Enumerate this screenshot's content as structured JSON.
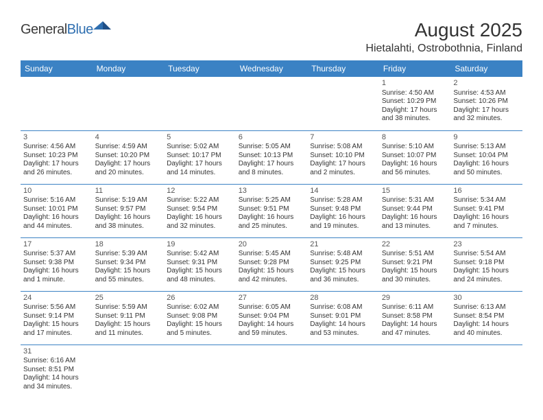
{
  "logo": {
    "part1": "General",
    "part2": "Blue"
  },
  "title": "August 2025",
  "location": "Hietalahti, Ostrobothnia, Finland",
  "colors": {
    "header_bg": "#3b82c4",
    "header_text": "#ffffff",
    "border": "#3b82c4",
    "text": "#333333",
    "logo_gray": "#3b3b3b",
    "logo_blue": "#2f6fb0",
    "background": "#ffffff"
  },
  "dayHeaders": [
    "Sunday",
    "Monday",
    "Tuesday",
    "Wednesday",
    "Thursday",
    "Friday",
    "Saturday"
  ],
  "weeks": [
    [
      null,
      null,
      null,
      null,
      null,
      {
        "n": "1",
        "sr": "4:50 AM",
        "ss": "10:29 PM",
        "dl": "17 hours and 38 minutes."
      },
      {
        "n": "2",
        "sr": "4:53 AM",
        "ss": "10:26 PM",
        "dl": "17 hours and 32 minutes."
      }
    ],
    [
      {
        "n": "3",
        "sr": "4:56 AM",
        "ss": "10:23 PM",
        "dl": "17 hours and 26 minutes."
      },
      {
        "n": "4",
        "sr": "4:59 AM",
        "ss": "10:20 PM",
        "dl": "17 hours and 20 minutes."
      },
      {
        "n": "5",
        "sr": "5:02 AM",
        "ss": "10:17 PM",
        "dl": "17 hours and 14 minutes."
      },
      {
        "n": "6",
        "sr": "5:05 AM",
        "ss": "10:13 PM",
        "dl": "17 hours and 8 minutes."
      },
      {
        "n": "7",
        "sr": "5:08 AM",
        "ss": "10:10 PM",
        "dl": "17 hours and 2 minutes."
      },
      {
        "n": "8",
        "sr": "5:10 AM",
        "ss": "10:07 PM",
        "dl": "16 hours and 56 minutes."
      },
      {
        "n": "9",
        "sr": "5:13 AM",
        "ss": "10:04 PM",
        "dl": "16 hours and 50 minutes."
      }
    ],
    [
      {
        "n": "10",
        "sr": "5:16 AM",
        "ss": "10:01 PM",
        "dl": "16 hours and 44 minutes."
      },
      {
        "n": "11",
        "sr": "5:19 AM",
        "ss": "9:57 PM",
        "dl": "16 hours and 38 minutes."
      },
      {
        "n": "12",
        "sr": "5:22 AM",
        "ss": "9:54 PM",
        "dl": "16 hours and 32 minutes."
      },
      {
        "n": "13",
        "sr": "5:25 AM",
        "ss": "9:51 PM",
        "dl": "16 hours and 25 minutes."
      },
      {
        "n": "14",
        "sr": "5:28 AM",
        "ss": "9:48 PM",
        "dl": "16 hours and 19 minutes."
      },
      {
        "n": "15",
        "sr": "5:31 AM",
        "ss": "9:44 PM",
        "dl": "16 hours and 13 minutes."
      },
      {
        "n": "16",
        "sr": "5:34 AM",
        "ss": "9:41 PM",
        "dl": "16 hours and 7 minutes."
      }
    ],
    [
      {
        "n": "17",
        "sr": "5:37 AM",
        "ss": "9:38 PM",
        "dl": "16 hours and 1 minute."
      },
      {
        "n": "18",
        "sr": "5:39 AM",
        "ss": "9:34 PM",
        "dl": "15 hours and 55 minutes."
      },
      {
        "n": "19",
        "sr": "5:42 AM",
        "ss": "9:31 PM",
        "dl": "15 hours and 48 minutes."
      },
      {
        "n": "20",
        "sr": "5:45 AM",
        "ss": "9:28 PM",
        "dl": "15 hours and 42 minutes."
      },
      {
        "n": "21",
        "sr": "5:48 AM",
        "ss": "9:25 PM",
        "dl": "15 hours and 36 minutes."
      },
      {
        "n": "22",
        "sr": "5:51 AM",
        "ss": "9:21 PM",
        "dl": "15 hours and 30 minutes."
      },
      {
        "n": "23",
        "sr": "5:54 AM",
        "ss": "9:18 PM",
        "dl": "15 hours and 24 minutes."
      }
    ],
    [
      {
        "n": "24",
        "sr": "5:56 AM",
        "ss": "9:14 PM",
        "dl": "15 hours and 17 minutes."
      },
      {
        "n": "25",
        "sr": "5:59 AM",
        "ss": "9:11 PM",
        "dl": "15 hours and 11 minutes."
      },
      {
        "n": "26",
        "sr": "6:02 AM",
        "ss": "9:08 PM",
        "dl": "15 hours and 5 minutes."
      },
      {
        "n": "27",
        "sr": "6:05 AM",
        "ss": "9:04 PM",
        "dl": "14 hours and 59 minutes."
      },
      {
        "n": "28",
        "sr": "6:08 AM",
        "ss": "9:01 PM",
        "dl": "14 hours and 53 minutes."
      },
      {
        "n": "29",
        "sr": "6:11 AM",
        "ss": "8:58 PM",
        "dl": "14 hours and 47 minutes."
      },
      {
        "n": "30",
        "sr": "6:13 AM",
        "ss": "8:54 PM",
        "dl": "14 hours and 40 minutes."
      }
    ],
    [
      {
        "n": "31",
        "sr": "6:16 AM",
        "ss": "8:51 PM",
        "dl": "14 hours and 34 minutes."
      },
      null,
      null,
      null,
      null,
      null,
      null
    ]
  ],
  "labels": {
    "sunrise": "Sunrise:",
    "sunset": "Sunset:",
    "daylight": "Daylight:"
  }
}
